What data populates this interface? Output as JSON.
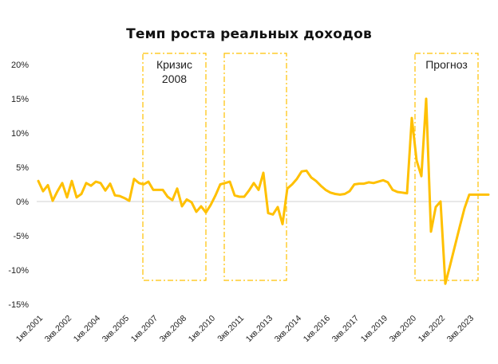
{
  "chart_data": {
    "type": "line",
    "title": "Темп роста реальных доходов",
    "xlabel": "",
    "ylabel": "",
    "ylim": [
      -15,
      20
    ],
    "yticks": [
      "20%",
      "15%",
      "10%",
      "5%",
      "0%",
      "-5%",
      "-10%",
      "-15%"
    ],
    "ytick_values": [
      20,
      15,
      10,
      5,
      0,
      -5,
      -10,
      -15
    ],
    "xtick_labels": [
      "1кв.2001",
      "3кв.2002",
      "1кв.2004",
      "3кв.2005",
      "1кв.2007",
      "3кв.2008",
      "1кв.2010",
      "3кв.2011",
      "1кв.2013",
      "3кв.2014",
      "1кв.2016",
      "3кв.2017",
      "1кв.2019",
      "3кв.2020",
      "1кв.2022",
      "3кв.2023"
    ],
    "grid": false,
    "legend": null,
    "line_color": "#FFC000",
    "series": [
      {
        "name": "Темп роста реальных доходов, %",
        "values": [
          3.0,
          1.5,
          2.4,
          0.1,
          1.5,
          2.7,
          0.6,
          3.0,
          0.6,
          1.1,
          2.7,
          2.3,
          2.9,
          2.7,
          1.6,
          2.6,
          0.9,
          0.8,
          0.5,
          0.1,
          3.3,
          2.7,
          2.5,
          2.9,
          1.7,
          1.7,
          1.7,
          0.7,
          0.2,
          1.9,
          -0.7,
          0.3,
          -0.1,
          -1.5,
          -0.7,
          -1.6,
          -0.5,
          0.9,
          2.5,
          2.7,
          2.9,
          0.9,
          0.7,
          0.7,
          1.6,
          2.7,
          1.7,
          4.2,
          -1.7,
          -1.9,
          -0.8,
          -3.3,
          1.9,
          2.5,
          3.3,
          4.4,
          4.5,
          3.5,
          3.0,
          2.3,
          1.7,
          1.3,
          1.1,
          1.0,
          1.1,
          1.5,
          2.5,
          2.6,
          2.6,
          2.8,
          2.7,
          2.9,
          3.1,
          2.8,
          1.7,
          1.4,
          1.3,
          1.2,
          12.2,
          6.0,
          3.7,
          15.0,
          -4.4,
          -0.8,
          0.0,
          -12.0,
          -9.3,
          -6.5,
          -3.7,
          -1.0,
          1.0,
          1.0,
          1.0,
          1.0,
          1.0
        ]
      }
    ],
    "annotations": [
      {
        "label_line1": "Кризис",
        "label_line2": "2008",
        "type": "dash-dot-box"
      },
      {
        "label_line1": "",
        "label_line2": "",
        "type": "dash-dot-box"
      },
      {
        "label_line1": "Прогноз",
        "label_line2": "",
        "type": "dash-dot-box"
      }
    ]
  }
}
